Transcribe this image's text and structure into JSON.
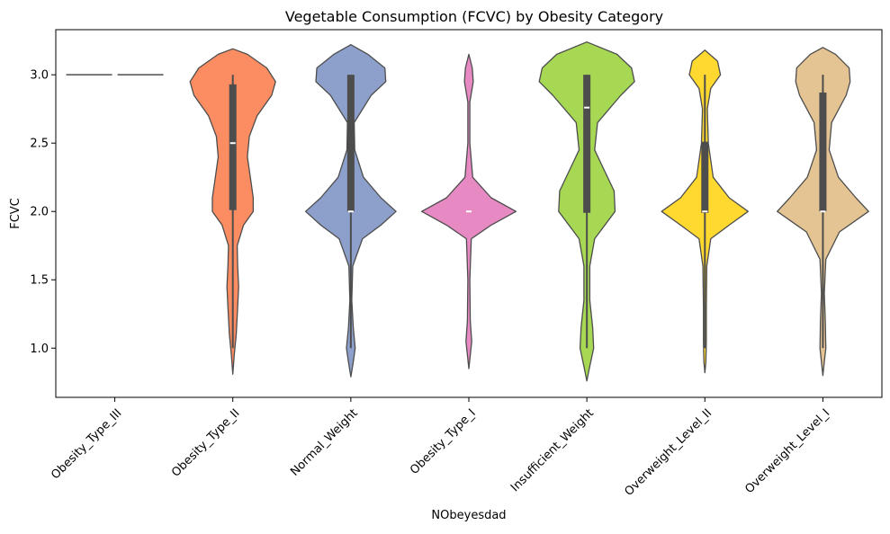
{
  "chart_data": {
    "type": "violin",
    "title": "Vegetable Consumption (FCVC) by Obesity Category",
    "xlabel": "NObeyesdad",
    "ylabel": "FCVC",
    "ylim": [
      0.64,
      3.33
    ],
    "yticks": [
      1.0,
      1.5,
      2.0,
      2.5,
      3.0
    ],
    "ytick_labels": [
      "1.0",
      "1.5",
      "2.0",
      "2.5",
      "3.0"
    ],
    "grid": false,
    "legend": "none",
    "categories": [
      "Obesity_Type_III",
      "Obesity_Type_II",
      "Normal_Weight",
      "Obesity_Type_I",
      "Insufficient_Weight",
      "Overweight_Level_II",
      "Overweight_Level_I"
    ],
    "colors": [
      "#66c2a5",
      "#fc8d62",
      "#8da0cb",
      "#e78ac3",
      "#a6d854",
      "#ffd92f",
      "#e5c494"
    ],
    "violins": [
      {
        "name": "Obesity_Type_III",
        "degenerate": true,
        "value": 3.0,
        "q1": 3.0,
        "median": 3.0,
        "q3": 3.0,
        "whisker_low": 3.0,
        "whisker_high": 3.0,
        "density": []
      },
      {
        "name": "Obesity_Type_II",
        "q1": 2.01,
        "median": 2.5,
        "q3": 2.93,
        "whisker_low": 1.0,
        "whisker_high": 3.0,
        "density": [
          [
            0.81,
            0.0
          ],
          [
            0.95,
            0.03
          ],
          [
            1.1,
            0.07
          ],
          [
            1.3,
            0.1
          ],
          [
            1.45,
            0.12
          ],
          [
            1.6,
            0.1
          ],
          [
            1.75,
            0.09
          ],
          [
            1.9,
            0.22
          ],
          [
            2.0,
            0.42
          ],
          [
            2.1,
            0.42
          ],
          [
            2.25,
            0.36
          ],
          [
            2.4,
            0.3
          ],
          [
            2.55,
            0.34
          ],
          [
            2.7,
            0.5
          ],
          [
            2.85,
            0.8
          ],
          [
            2.95,
            0.88
          ],
          [
            3.05,
            0.7
          ],
          [
            3.15,
            0.3
          ],
          [
            3.19,
            0.0
          ]
        ]
      },
      {
        "name": "Normal_Weight",
        "q1": 2.0,
        "median": 2.0,
        "q3": 3.0,
        "whisker_low": 1.0,
        "whisker_high": 3.0,
        "density": [
          [
            0.79,
            0.0
          ],
          [
            0.9,
            0.05
          ],
          [
            1.0,
            0.09
          ],
          [
            1.15,
            0.05
          ],
          [
            1.35,
            0.02
          ],
          [
            1.6,
            0.04
          ],
          [
            1.8,
            0.24
          ],
          [
            1.9,
            0.62
          ],
          [
            2.0,
            0.93
          ],
          [
            2.1,
            0.62
          ],
          [
            2.25,
            0.26
          ],
          [
            2.45,
            0.08
          ],
          [
            2.65,
            0.07
          ],
          [
            2.85,
            0.42
          ],
          [
            2.95,
            0.72
          ],
          [
            3.05,
            0.7
          ],
          [
            3.15,
            0.35
          ],
          [
            3.22,
            0.0
          ]
        ]
      },
      {
        "name": "Obesity_Type_I",
        "q1": 2.0,
        "median": 2.0,
        "q3": 2.0,
        "whisker_low": 2.0,
        "whisker_high": 2.0,
        "density": [
          [
            0.85,
            0.0
          ],
          [
            0.95,
            0.03
          ],
          [
            1.05,
            0.06
          ],
          [
            1.2,
            0.03
          ],
          [
            1.5,
            0.02
          ],
          [
            1.8,
            0.05
          ],
          [
            1.9,
            0.46
          ],
          [
            2.0,
            0.97
          ],
          [
            2.1,
            0.46
          ],
          [
            2.25,
            0.08
          ],
          [
            2.5,
            0.02
          ],
          [
            2.8,
            0.02
          ],
          [
            2.95,
            0.09
          ],
          [
            3.05,
            0.07
          ],
          [
            3.15,
            0.0
          ]
        ]
      },
      {
        "name": "Insufficient_Weight",
        "q1": 1.99,
        "median": 2.76,
        "q3": 3.0,
        "whisker_low": 1.0,
        "whisker_high": 3.0,
        "density": [
          [
            0.76,
            0.0
          ],
          [
            0.85,
            0.05
          ],
          [
            1.0,
            0.14
          ],
          [
            1.15,
            0.12
          ],
          [
            1.35,
            0.06
          ],
          [
            1.6,
            0.06
          ],
          [
            1.8,
            0.16
          ],
          [
            2.0,
            0.58
          ],
          [
            2.15,
            0.56
          ],
          [
            2.3,
            0.36
          ],
          [
            2.45,
            0.16
          ],
          [
            2.65,
            0.22
          ],
          [
            2.85,
            0.7
          ],
          [
            2.95,
            0.98
          ],
          [
            3.05,
            0.92
          ],
          [
            3.15,
            0.62
          ],
          [
            3.24,
            0.0
          ]
        ]
      },
      {
        "name": "Overweight_Level_II",
        "q1": 1.99,
        "median": 2.0,
        "q3": 2.51,
        "whisker_low": 1.0,
        "whisker_high": 3.0,
        "density": [
          [
            0.82,
            0.0
          ],
          [
            0.9,
            0.02
          ],
          [
            1.05,
            0.03
          ],
          [
            1.3,
            0.03
          ],
          [
            1.6,
            0.04
          ],
          [
            1.8,
            0.12
          ],
          [
            1.9,
            0.5
          ],
          [
            2.0,
            0.89
          ],
          [
            2.1,
            0.5
          ],
          [
            2.25,
            0.17
          ],
          [
            2.5,
            0.07
          ],
          [
            2.75,
            0.05
          ],
          [
            2.9,
            0.12
          ],
          [
            3.0,
            0.32
          ],
          [
            3.1,
            0.26
          ],
          [
            3.18,
            0.0
          ]
        ]
      },
      {
        "name": "Overweight_Level_I",
        "q1": 2.0,
        "median": 2.0,
        "q3": 2.87,
        "whisker_low": 1.0,
        "whisker_high": 3.0,
        "density": [
          [
            0.8,
            0.0
          ],
          [
            0.9,
            0.03
          ],
          [
            1.0,
            0.06
          ],
          [
            1.2,
            0.05
          ],
          [
            1.4,
            0.03
          ],
          [
            1.65,
            0.06
          ],
          [
            1.85,
            0.34
          ],
          [
            2.0,
            0.94
          ],
          [
            2.1,
            0.68
          ],
          [
            2.25,
            0.32
          ],
          [
            2.45,
            0.13
          ],
          [
            2.65,
            0.18
          ],
          [
            2.85,
            0.48
          ],
          [
            2.95,
            0.56
          ],
          [
            3.05,
            0.54
          ],
          [
            3.15,
            0.26
          ],
          [
            3.2,
            0.0
          ]
        ]
      }
    ]
  }
}
